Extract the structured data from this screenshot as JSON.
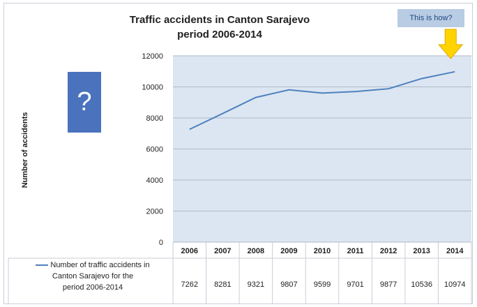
{
  "chart_data": {
    "type": "line",
    "title": "Traffic accidents in Canton Sarajevo period 2006-2014",
    "title_lines": [
      "Traffic accidents in Canton Sarajevo",
      "period 2006-2014"
    ],
    "ylabel": "Number of  accidents",
    "ylim": [
      0,
      12000
    ],
    "yticks": [
      "0",
      "2000",
      "4000",
      "6000",
      "8000",
      "10000",
      "12000"
    ],
    "categories": [
      "2006",
      "2007",
      "2008",
      "2009",
      "2010",
      "2011",
      "2012",
      "2013",
      "2014"
    ],
    "series": [
      {
        "name": "Number of traffic accidents in Canton Sarajevo for the period 2006-2014",
        "values": [
          7262,
          8281,
          9321,
          9807,
          9599,
          9701,
          9877,
          10536,
          10974
        ],
        "value_labels": [
          "7262",
          "8281",
          "9321",
          "9807",
          "9599",
          "9701",
          "9877",
          "10536",
          "10974"
        ],
        "color": "#4f81bd"
      }
    ],
    "legend_lines": [
      "Number of traffic accidents in",
      "Canton Sarajevo for the",
      "period 2006-2014"
    ],
    "legend_placement": "data-table-left",
    "grid": true,
    "annotation": "This is how?",
    "question_mark": "?",
    "colors": {
      "plot_area": "#dce6f2",
      "grid": "#aeb9c8",
      "line": "#4f81bd",
      "arrow": "#ffd400",
      "question_box": "#4a72bd",
      "annotation_box": "#b8cce4"
    }
  }
}
